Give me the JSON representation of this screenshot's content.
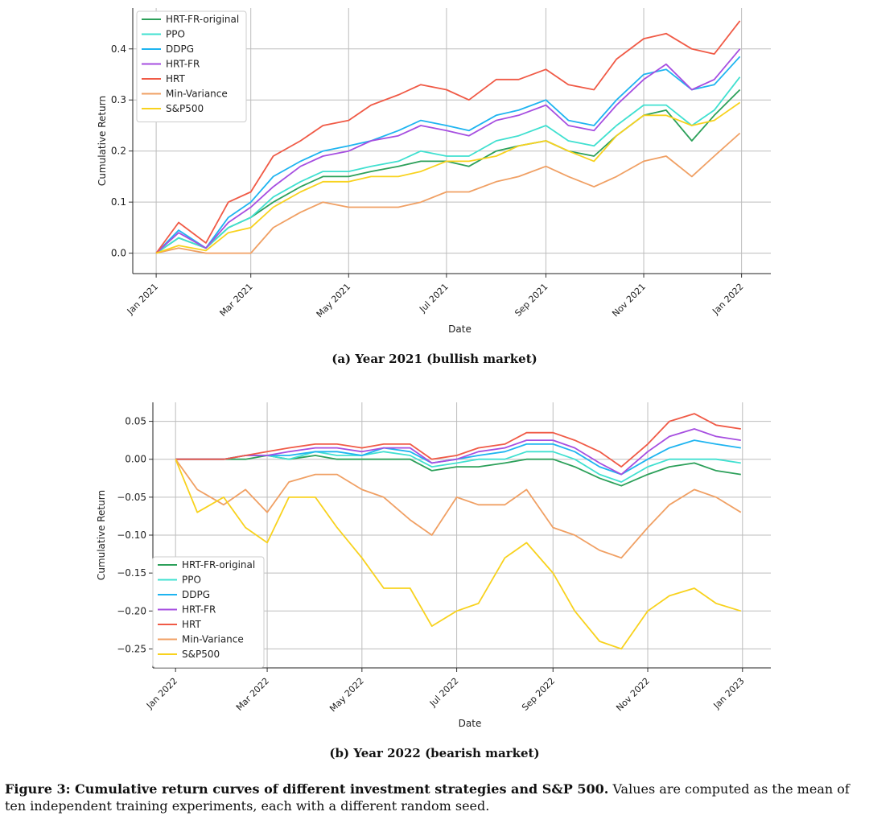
{
  "chart_data": [
    {
      "type": "line",
      "caption": "(a) Year 2021 (bullish market)",
      "xlabel": "Date",
      "ylabel": "Cumulative Return",
      "x_ticks": [
        "Jan 2021",
        "Mar 2021",
        "May 2021",
        "Jul 2021",
        "Sep 2021",
        "Nov 2021",
        "Jan 2022"
      ],
      "y_ticks": [
        "0.0",
        "0.1",
        "0.2",
        "0.3",
        "0.4"
      ],
      "ylim": [
        -0.04,
        0.48
      ],
      "grid": true,
      "legend_position": "top-left",
      "x": [
        "2021-01-01",
        "2021-01-15",
        "2021-02-01",
        "2021-02-15",
        "2021-03-01",
        "2021-03-15",
        "2021-04-01",
        "2021-04-15",
        "2021-05-01",
        "2021-05-15",
        "2021-06-01",
        "2021-06-15",
        "2021-07-01",
        "2021-07-15",
        "2021-08-01",
        "2021-08-15",
        "2021-09-01",
        "2021-09-15",
        "2021-10-01",
        "2021-10-15",
        "2021-11-01",
        "2021-11-15",
        "2021-12-01",
        "2021-12-15",
        "2021-12-31"
      ],
      "series": [
        {
          "name": "HRT-FR-original",
          "color": "#2ca05a",
          "values": [
            0.0,
            0.03,
            0.01,
            0.05,
            0.07,
            0.1,
            0.13,
            0.15,
            0.15,
            0.16,
            0.17,
            0.18,
            0.18,
            0.17,
            0.2,
            0.21,
            0.22,
            0.2,
            0.19,
            0.23,
            0.27,
            0.28,
            0.22,
            0.27,
            0.32
          ]
        },
        {
          "name": "PPO",
          "color": "#40e0d0",
          "values": [
            0.0,
            0.03,
            0.01,
            0.05,
            0.07,
            0.11,
            0.14,
            0.16,
            0.16,
            0.17,
            0.18,
            0.2,
            0.19,
            0.19,
            0.22,
            0.23,
            0.25,
            0.22,
            0.21,
            0.25,
            0.29,
            0.29,
            0.25,
            0.28,
            0.345
          ]
        },
        {
          "name": "DDPG",
          "color": "#1eb4f0",
          "values": [
            0.0,
            0.045,
            0.01,
            0.07,
            0.1,
            0.15,
            0.18,
            0.2,
            0.21,
            0.22,
            0.24,
            0.26,
            0.25,
            0.24,
            0.27,
            0.28,
            0.3,
            0.26,
            0.25,
            0.3,
            0.35,
            0.36,
            0.32,
            0.33,
            0.385
          ]
        },
        {
          "name": "HRT-FR",
          "color": "#a64ee0",
          "values": [
            0.0,
            0.04,
            0.01,
            0.06,
            0.09,
            0.13,
            0.17,
            0.19,
            0.2,
            0.22,
            0.23,
            0.25,
            0.24,
            0.23,
            0.26,
            0.27,
            0.29,
            0.25,
            0.24,
            0.29,
            0.34,
            0.37,
            0.32,
            0.34,
            0.4
          ]
        },
        {
          "name": "HRT",
          "color": "#f05a46",
          "values": [
            0.0,
            0.06,
            0.02,
            0.1,
            0.12,
            0.19,
            0.22,
            0.25,
            0.26,
            0.29,
            0.31,
            0.33,
            0.32,
            0.3,
            0.34,
            0.34,
            0.36,
            0.33,
            0.32,
            0.38,
            0.42,
            0.43,
            0.4,
            0.39,
            0.455
          ]
        },
        {
          "name": "Min-Variance",
          "color": "#f0a064",
          "values": [
            0.0,
            0.01,
            0.0,
            0.0,
            0.0,
            0.05,
            0.08,
            0.1,
            0.09,
            0.09,
            0.09,
            0.1,
            0.12,
            0.12,
            0.14,
            0.15,
            0.17,
            0.15,
            0.13,
            0.15,
            0.18,
            0.19,
            0.15,
            0.19,
            0.235
          ]
        },
        {
          "name": "S&P500",
          "color": "#f8d21e",
          "values": [
            0.0,
            0.015,
            0.005,
            0.04,
            0.05,
            0.09,
            0.12,
            0.14,
            0.14,
            0.15,
            0.15,
            0.16,
            0.18,
            0.18,
            0.19,
            0.21,
            0.22,
            0.2,
            0.18,
            0.23,
            0.27,
            0.27,
            0.25,
            0.26,
            0.295
          ]
        }
      ]
    },
    {
      "type": "line",
      "caption": "(b) Year 2022 (bearish market)",
      "xlabel": "Date",
      "ylabel": "Cumulative Return",
      "x_ticks": [
        "Jan 2022",
        "Mar 2022",
        "May 2022",
        "Jul 2022",
        "Sep 2022",
        "Nov 2022",
        "Jan 2023"
      ],
      "y_ticks": [
        "0.05",
        "0.00",
        "−0.05",
        "−0.10",
        "−0.15",
        "−0.20",
        "−0.25"
      ],
      "ylim": [
        -0.275,
        0.075
      ],
      "grid": true,
      "legend_position": "bottom-left",
      "x": [
        "2022-01-01",
        "2022-01-15",
        "2022-02-01",
        "2022-02-15",
        "2022-03-01",
        "2022-03-15",
        "2022-04-01",
        "2022-04-15",
        "2022-05-01",
        "2022-05-15",
        "2022-06-01",
        "2022-06-15",
        "2022-07-01",
        "2022-07-15",
        "2022-08-01",
        "2022-08-15",
        "2022-09-01",
        "2022-09-15",
        "2022-10-01",
        "2022-10-15",
        "2022-11-01",
        "2022-11-15",
        "2022-12-01",
        "2022-12-15",
        "2022-12-31"
      ],
      "series": [
        {
          "name": "HRT-FR-original",
          "color": "#2ca05a",
          "values": [
            0.0,
            0.0,
            0.0,
            0.0,
            0.005,
            0.0,
            0.005,
            0.0,
            0.0,
            0.0,
            0.0,
            -0.015,
            -0.01,
            -0.01,
            -0.005,
            0.0,
            0.0,
            -0.01,
            -0.025,
            -0.035,
            -0.02,
            -0.01,
            -0.005,
            -0.015,
            -0.02
          ]
        },
        {
          "name": "PPO",
          "color": "#40e0d0",
          "values": [
            0.0,
            0.0,
            0.0,
            0.005,
            0.005,
            0.0,
            0.01,
            0.005,
            0.005,
            0.01,
            0.005,
            -0.01,
            -0.005,
            0.0,
            0.0,
            0.01,
            0.01,
            0.0,
            -0.02,
            -0.03,
            -0.01,
            0.0,
            0.0,
            0.0,
            -0.005
          ]
        },
        {
          "name": "DDPG",
          "color": "#1eb4f0",
          "values": [
            0.0,
            0.0,
            0.0,
            0.005,
            0.005,
            0.005,
            0.01,
            0.01,
            0.005,
            0.015,
            0.01,
            -0.005,
            0.0,
            0.005,
            0.01,
            0.02,
            0.02,
            0.01,
            -0.01,
            -0.02,
            0.0,
            0.015,
            0.025,
            0.02,
            0.015
          ]
        },
        {
          "name": "HRT-FR",
          "color": "#a64ee0",
          "values": [
            0.0,
            0.0,
            0.0,
            0.005,
            0.005,
            0.01,
            0.015,
            0.015,
            0.01,
            0.015,
            0.015,
            -0.005,
            0.0,
            0.01,
            0.015,
            0.025,
            0.025,
            0.015,
            -0.005,
            -0.02,
            0.01,
            0.03,
            0.04,
            0.03,
            0.025
          ]
        },
        {
          "name": "HRT",
          "color": "#f05a46",
          "values": [
            0.0,
            0.0,
            0.0,
            0.005,
            0.01,
            0.015,
            0.02,
            0.02,
            0.015,
            0.02,
            0.02,
            0.0,
            0.005,
            0.015,
            0.02,
            0.035,
            0.035,
            0.025,
            0.01,
            -0.01,
            0.02,
            0.05,
            0.06,
            0.045,
            0.04
          ]
        },
        {
          "name": "Min-Variance",
          "color": "#f0a064",
          "values": [
            0.0,
            -0.04,
            -0.06,
            -0.04,
            -0.07,
            -0.03,
            -0.02,
            -0.02,
            -0.04,
            -0.05,
            -0.08,
            -0.1,
            -0.05,
            -0.06,
            -0.06,
            -0.04,
            -0.09,
            -0.1,
            -0.12,
            -0.13,
            -0.09,
            -0.06,
            -0.04,
            -0.05,
            -0.07
          ]
        },
        {
          "name": "S&P500",
          "color": "#f8d21e",
          "values": [
            0.0,
            -0.07,
            -0.05,
            -0.09,
            -0.11,
            -0.05,
            -0.05,
            -0.09,
            -0.13,
            -0.17,
            -0.17,
            -0.22,
            -0.2,
            -0.19,
            -0.13,
            -0.11,
            -0.15,
            -0.2,
            -0.24,
            -0.25,
            -0.2,
            -0.18,
            -0.17,
            -0.19,
            -0.2
          ]
        }
      ]
    }
  ],
  "figure_caption": {
    "label": "Figure 3: Cumulative return curves of different investment strategies and S&P 500.",
    "text": " Values are computed as the mean of ten independent training experiments, each with a different random seed."
  }
}
